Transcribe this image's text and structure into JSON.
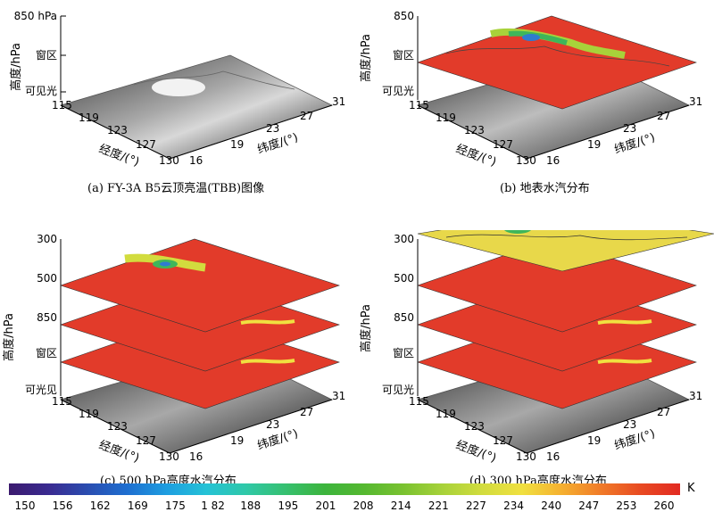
{
  "panels": [
    {
      "id": "a",
      "caption": "(a)  FY-3A B5云顶亮温(TBB)图像",
      "z_ticks": [
        "850\nhPa",
        "窗区",
        "可见光"
      ],
      "lon_ticks": [
        "115",
        "119",
        "123",
        "127",
        "130"
      ],
      "lat_ticks": [
        "16",
        "19",
        "23",
        "27",
        "31"
      ],
      "lon_title": "经度/(°)",
      "lat_title": "纬度/(°)",
      "z_title": "高度/hPa"
    },
    {
      "id": "b",
      "caption": "(b)  地表水汽分布",
      "z_ticks": [
        "850",
        "窗区",
        "可见光"
      ],
      "lon_ticks": [
        "115",
        "119",
        "123",
        "127",
        "130"
      ],
      "lat_ticks": [
        "16",
        "19",
        "23",
        "27",
        "31"
      ],
      "lon_title": "经度/(°)",
      "lat_title": "纬度/(°)",
      "z_title": "高度/hPa"
    },
    {
      "id": "c",
      "caption": "(c)  500 hPa高度水汽分布",
      "z_ticks": [
        "300",
        "500",
        "850",
        "窗区",
        "可光见"
      ],
      "lon_ticks": [
        "115",
        "119",
        "123",
        "127",
        "130"
      ],
      "lat_ticks": [
        "16",
        "19",
        "23",
        "27",
        "31"
      ],
      "lon_title": "经度/(°)",
      "lat_title": "纬度/(°)",
      "z_title": "高度/hPa"
    },
    {
      "id": "d",
      "caption": "(d)  300 hPa高度水汽分布",
      "z_ticks": [
        "300",
        "500",
        "850",
        "窗区",
        "可见光"
      ],
      "lon_ticks": [
        "115",
        "119",
        "123",
        "127",
        "130"
      ],
      "lat_ticks": [
        "16",
        "19",
        "23",
        "27",
        "31"
      ],
      "lon_title": "经度/(°)",
      "lat_title": "纬度/(°)",
      "z_title": "高度/hPa"
    }
  ],
  "colorbar": {
    "ticks": [
      "150",
      "156",
      "162",
      "169",
      "175",
      "1 82",
      "188",
      "195",
      "201",
      "208",
      "214",
      "221",
      "227",
      "234",
      "240",
      "247",
      "253",
      "260"
    ],
    "unit": "K",
    "colors": [
      "#3b1a6e",
      "#3a2a90",
      "#2a4db0",
      "#1e6fd0",
      "#1e9ee0",
      "#25c2d6",
      "#2fc8a8",
      "#36c070",
      "#3cb43c",
      "#55b830",
      "#7ac230",
      "#a8d23a",
      "#d2dc3e",
      "#f0e040",
      "#f5b030",
      "#f07a28",
      "#e84a22",
      "#e22a22"
    ]
  },
  "colors": {
    "layer_red": "#e23b2a",
    "layer_yellow": "#e8d84a",
    "cloud_green": "#3fb65a",
    "cloud_blue": "#2f7bd0",
    "gray_dark": "#2a2a2a",
    "gray_light": "#b8b8b8"
  }
}
